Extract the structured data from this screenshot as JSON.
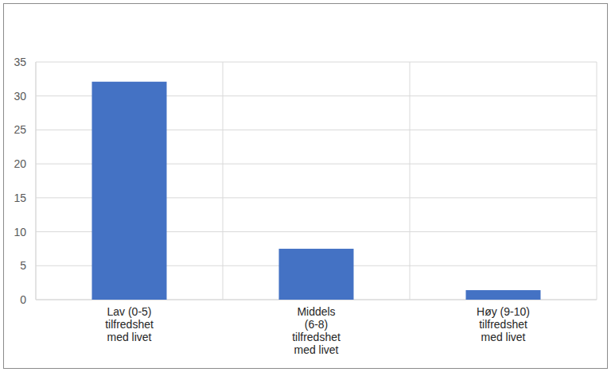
{
  "chart_data": {
    "type": "bar",
    "categories": [
      "Lav (0-5)\ntilfredshet\nmed livet",
      "Middels\n(6-8)\ntilfredshet\nmed livet",
      "Høy (9-10)\ntilfredshet\nmed livet"
    ],
    "values": [
      32.1,
      7.5,
      1.4
    ],
    "color": "#4472c4",
    "ylim": [
      0,
      35
    ],
    "yticks": [
      0,
      5,
      10,
      15,
      20,
      25,
      30,
      35
    ],
    "grid": true
  }
}
